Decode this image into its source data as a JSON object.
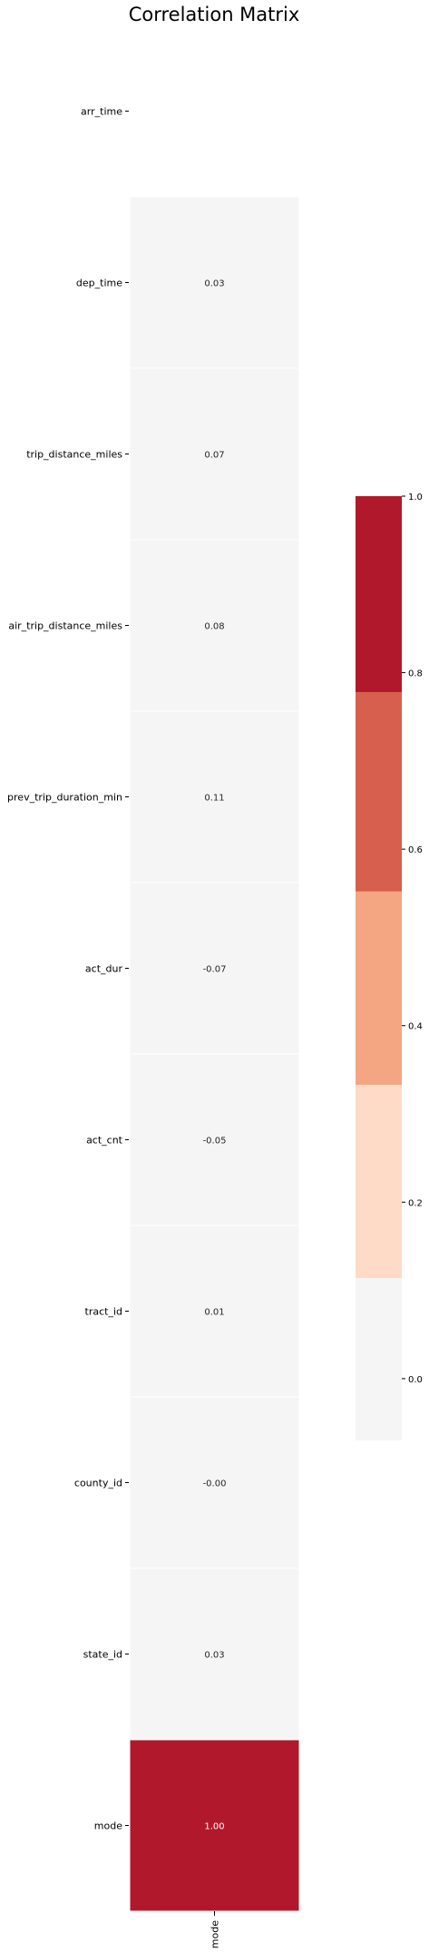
{
  "chart_data": {
    "type": "heatmap",
    "title": "Correlation Matrix",
    "rows": [
      "arr_time",
      "dep_time",
      "trip_distance_miles",
      "air_trip_distance_miles",
      "prev_trip_duration_min",
      "act_dur",
      "act_cnt",
      "tract_id",
      "county_id",
      "state_id",
      "mode"
    ],
    "columns": [
      "mode"
    ],
    "values": [
      null,
      0.03,
      0.07,
      0.08,
      0.11,
      -0.07,
      -0.05,
      0.01,
      -0.0,
      0.03,
      1.0
    ],
    "labels": [
      "",
      "0.03",
      "0.07",
      "0.08",
      "0.11",
      "-0.07",
      "-0.05",
      "0.01",
      "-0.00",
      "0.03",
      "1.00"
    ],
    "colorbar": {
      "range": [
        -0.07,
        1.0
      ],
      "ticks": [
        "0.0",
        "0.2",
        "0.4",
        "0.6",
        "0.8",
        "1.0"
      ],
      "tick_values": [
        0,
        0.2,
        0.4,
        0.6,
        0.8,
        1.0
      ],
      "bands": [
        {
          "from": -0.07,
          "to": 0.114,
          "color": "#f5f5f5"
        },
        {
          "from": 0.114,
          "to": 0.333,
          "color": "#fddbc7"
        },
        {
          "from": 0.333,
          "to": 0.552,
          "color": "#f4a582"
        },
        {
          "from": 0.552,
          "to": 0.778,
          "color": "#d6604d"
        },
        {
          "from": 0.778,
          "to": 1.0,
          "color": "#b2182b"
        }
      ]
    }
  }
}
